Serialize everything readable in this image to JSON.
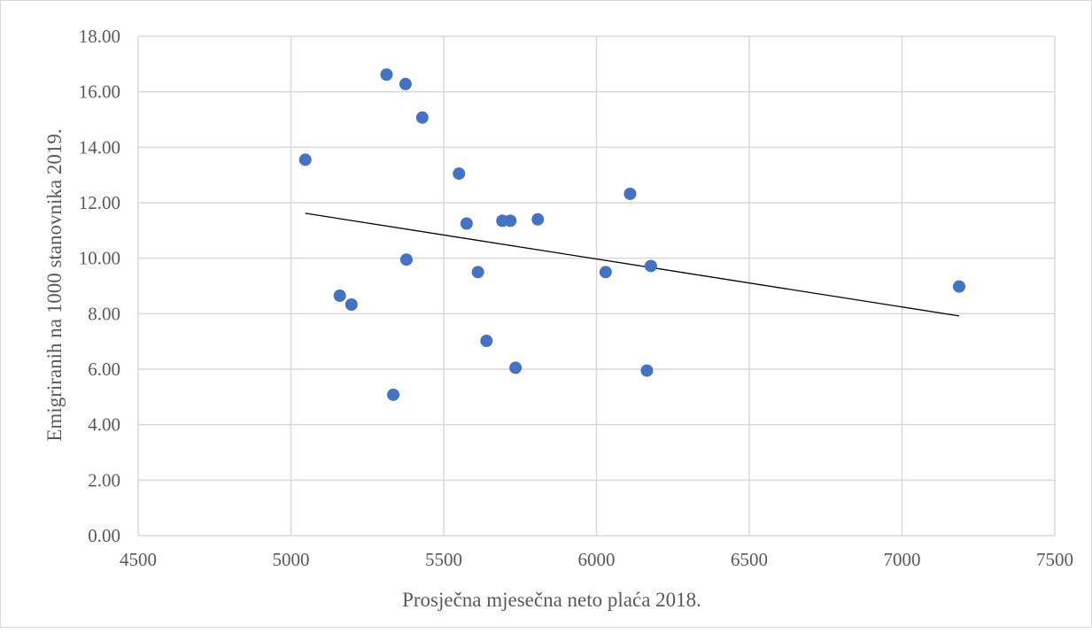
{
  "chart_data": {
    "type": "scatter",
    "title": "",
    "xlabel": "Prosječna mjesečna neto plaća 2018.",
    "ylabel": "Emigriranih na 1000 stanovnika  2019.",
    "xlim": [
      4500,
      7500
    ],
    "ylim": [
      0,
      18
    ],
    "x_ticks": [
      4500,
      5000,
      5500,
      6000,
      6500,
      7000,
      7500
    ],
    "y_ticks": [
      0,
      2,
      4,
      6,
      8,
      10,
      12,
      14,
      16,
      18
    ],
    "x_tick_labels": [
      "4500",
      "5000",
      "5500",
      "6000",
      "6500",
      "7000",
      "7500"
    ],
    "y_tick_labels": [
      "0.00",
      "2.00",
      "4.00",
      "6.00",
      "8.00",
      "10.00",
      "12.00",
      "14.00",
      "16.00",
      "18.00"
    ],
    "grid": true,
    "legend": "none",
    "marker_color": "#4472C4",
    "trendline_color": "#000000",
    "gridline_color": "#d9d9d9",
    "points": [
      {
        "x": 5047,
        "y": 13.55
      },
      {
        "x": 5160,
        "y": 8.65
      },
      {
        "x": 5198,
        "y": 8.33
      },
      {
        "x": 5313,
        "y": 16.62
      },
      {
        "x": 5335,
        "y": 5.08
      },
      {
        "x": 5375,
        "y": 16.28
      },
      {
        "x": 5378,
        "y": 9.95
      },
      {
        "x": 5430,
        "y": 15.07
      },
      {
        "x": 5550,
        "y": 13.05
      },
      {
        "x": 5575,
        "y": 11.25
      },
      {
        "x": 5612,
        "y": 9.5
      },
      {
        "x": 5640,
        "y": 7.02
      },
      {
        "x": 5692,
        "y": 11.35
      },
      {
        "x": 5718,
        "y": 11.35
      },
      {
        "x": 5735,
        "y": 6.05
      },
      {
        "x": 5808,
        "y": 11.4
      },
      {
        "x": 6030,
        "y": 9.5
      },
      {
        "x": 6110,
        "y": 12.32
      },
      {
        "x": 6165,
        "y": 5.95
      },
      {
        "x": 6178,
        "y": 9.72
      },
      {
        "x": 7187,
        "y": 8.98
      }
    ],
    "trendline": {
      "type": "linear",
      "start": {
        "x": 5047,
        "y": 11.62
      },
      "end": {
        "x": 7187,
        "y": 7.92
      }
    }
  }
}
